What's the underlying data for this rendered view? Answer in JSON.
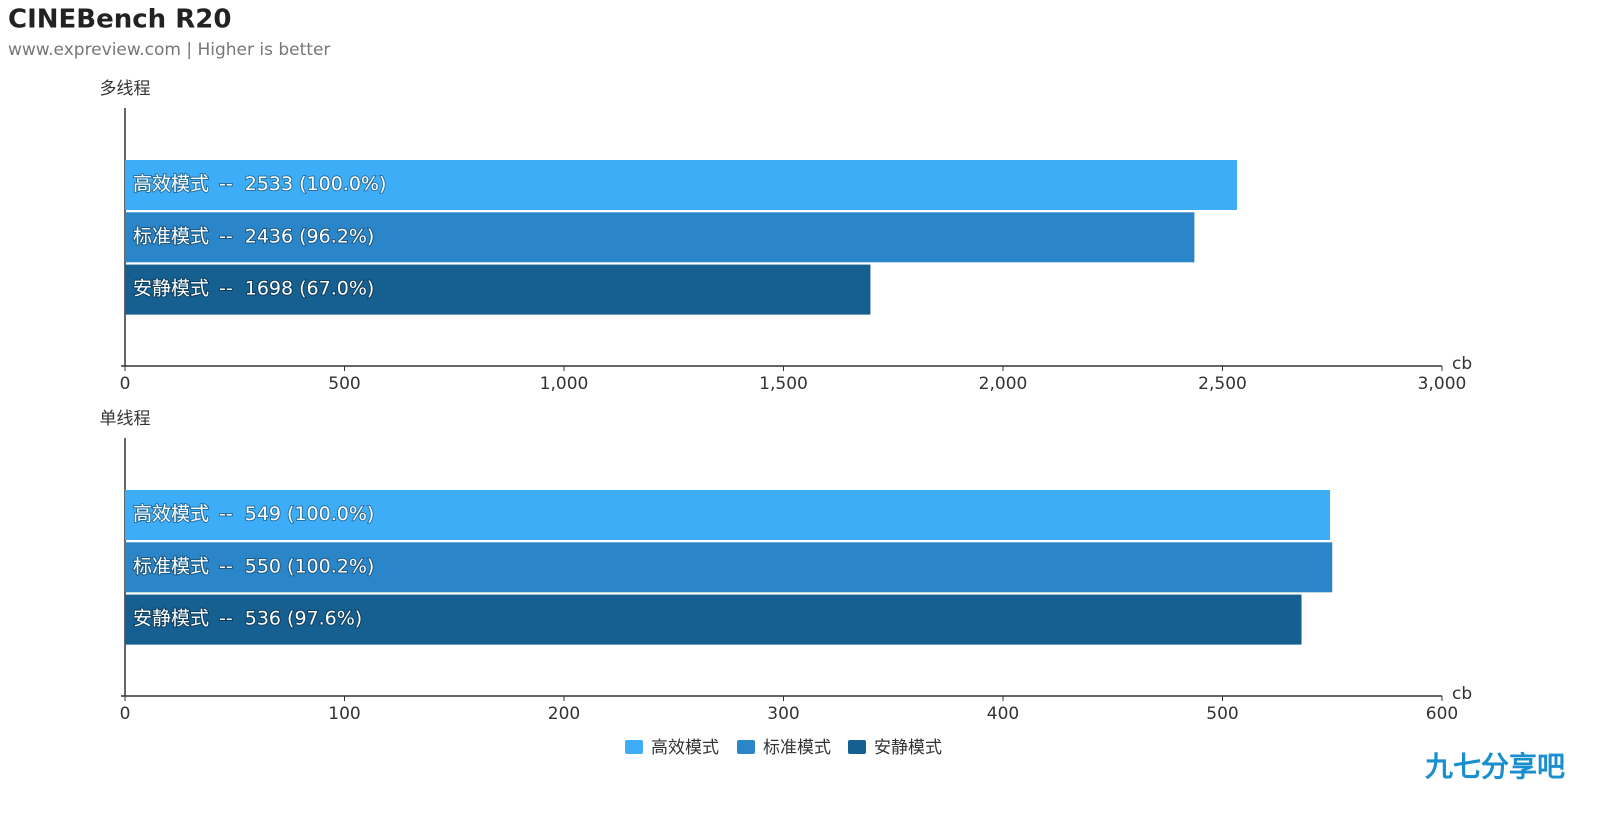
{
  "title": "CINEBench R20",
  "subtitle": "www.expreview.com | Higher is better",
  "watermark": "九七分享吧",
  "chart_data": [
    {
      "type": "bar",
      "orientation": "horizontal",
      "axis_title": "多线程",
      "xlabel": "cb",
      "separator": "--",
      "categories": [
        null
      ],
      "series": [
        {
          "name": "高效模式",
          "color": "#3eadf8",
          "values": [
            2533
          ],
          "value_labels": [
            "2533 (100.0%)"
          ]
        },
        {
          "name": "标准模式",
          "color": "#2a86c8",
          "values": [
            2436
          ],
          "value_labels": [
            "2436 (96.2%)"
          ]
        },
        {
          "name": "安静模式",
          "color": "#155f91",
          "values": [
            1698
          ],
          "value_labels": [
            "1698 (67.0%)"
          ]
        }
      ],
      "xlim": [
        0,
        3000
      ],
      "xticks": [
        0,
        500,
        {
          "value": 1000,
          "label": "1,000"
        },
        {
          "value": 1500,
          "label": "1,500"
        },
        {
          "value": 2000,
          "label": "2,000"
        },
        {
          "value": 2500,
          "label": "2,500"
        },
        {
          "value": 3000,
          "label": "3,000"
        }
      ]
    },
    {
      "type": "bar",
      "orientation": "horizontal",
      "axis_title": "单线程",
      "xlabel": "cb",
      "separator": "--",
      "categories": [
        null
      ],
      "series": [
        {
          "name": "高效模式",
          "color": "#3eadf8",
          "values": [
            549
          ],
          "value_labels": [
            "549 (100.0%)"
          ]
        },
        {
          "name": "标准模式",
          "color": "#2a86c8",
          "values": [
            550
          ],
          "value_labels": [
            "550 (100.2%)"
          ]
        },
        {
          "name": "安静模式",
          "color": "#155f91",
          "values": [
            536
          ],
          "value_labels": [
            "536 (97.6%)"
          ]
        }
      ],
      "xlim": [
        0,
        600
      ],
      "xticks": [
        0,
        100,
        200,
        300,
        400,
        500,
        600
      ]
    }
  ]
}
